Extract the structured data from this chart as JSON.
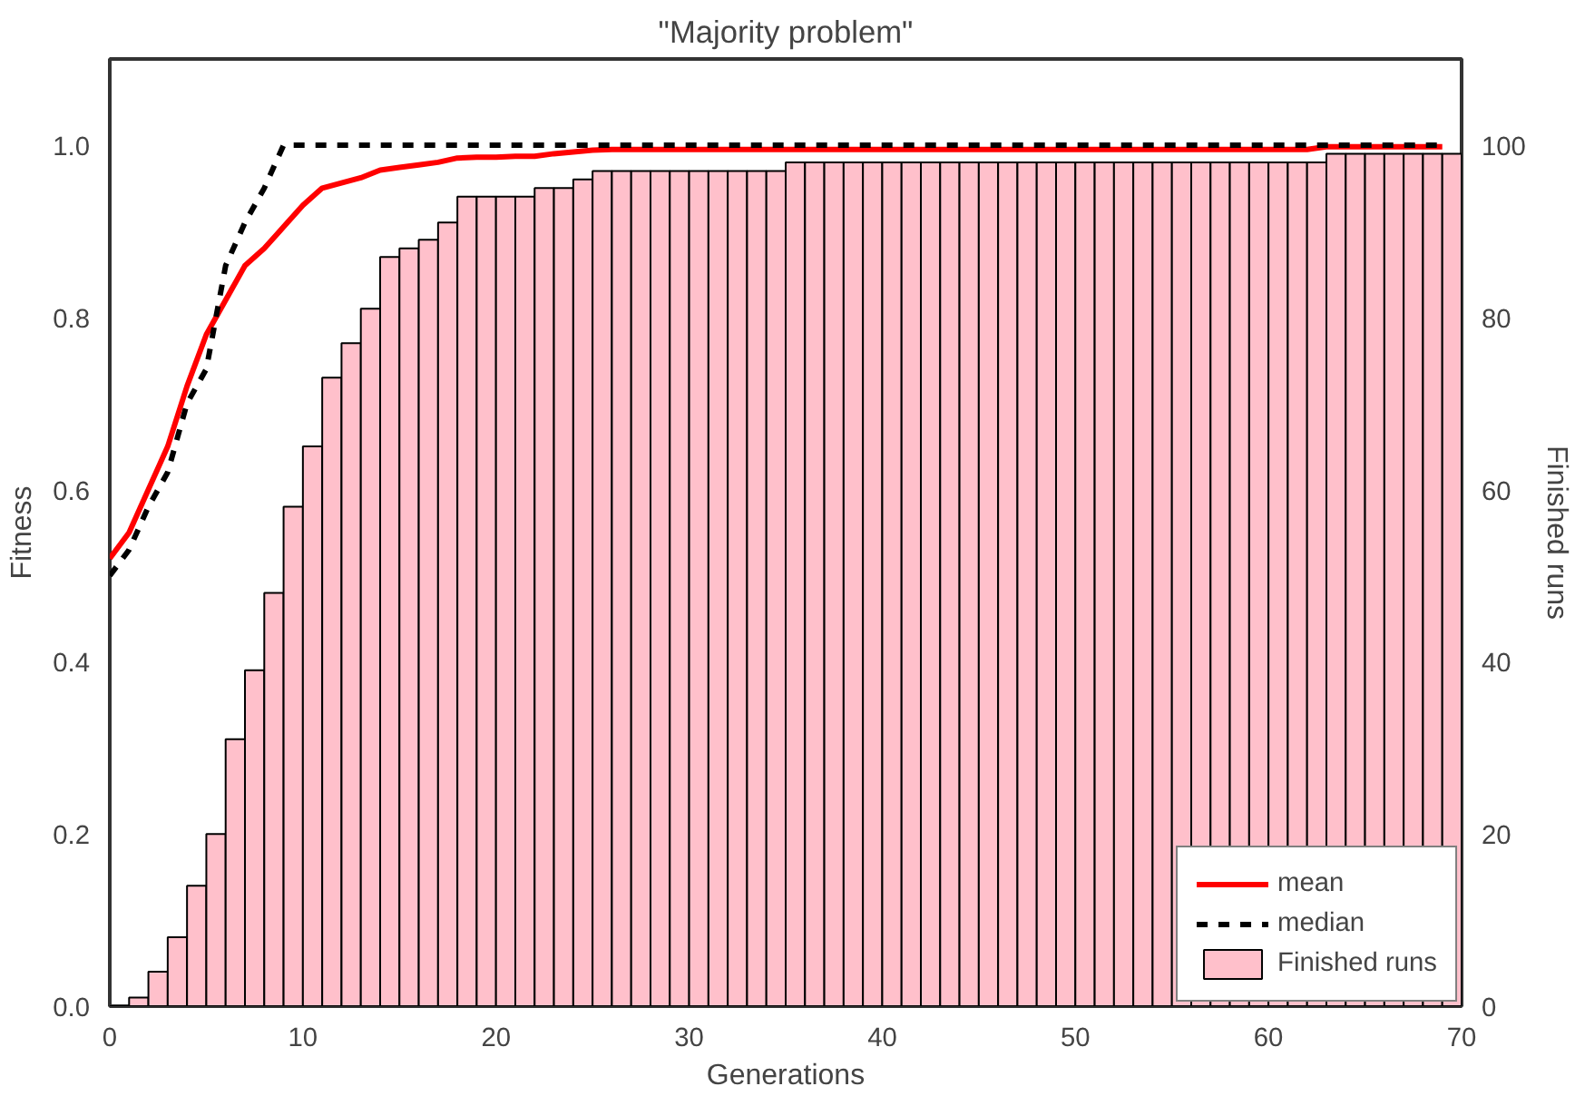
{
  "chart_data": {
    "type": "line",
    "title": "\"Majority problem\"",
    "xlabel": "Generations",
    "ylabel": "Fitness",
    "y2label": "Finished runs",
    "xlim": [
      0,
      70
    ],
    "xticks": [
      0,
      10,
      20,
      30,
      40,
      50,
      60,
      70
    ],
    "ylim": [
      0,
      1.1
    ],
    "yticks": [
      {
        "value": 0,
        "label": "0.0"
      },
      {
        "value": 0.2,
        "label": "0.2"
      },
      {
        "value": 0.4,
        "label": "0.4"
      },
      {
        "value": 0.6,
        "label": "0.6"
      },
      {
        "value": 0.8,
        "label": "0.8"
      },
      {
        "value": 1.0,
        "label": "1.0"
      }
    ],
    "y2lim": [
      0,
      110
    ],
    "y2ticks": [
      0,
      20,
      40,
      60,
      80,
      100
    ],
    "grid": false,
    "legend": "bottom right",
    "marker": "none",
    "series": [
      {
        "name": "mean",
        "color": "#ff0000",
        "line_style": "solid",
        "x": [
          0,
          1,
          2,
          3,
          4,
          5,
          6,
          7,
          8,
          9,
          10,
          11,
          12,
          13,
          14,
          15,
          16,
          17,
          18,
          19,
          20,
          21,
          22,
          23,
          24,
          25,
          26,
          27,
          28,
          29,
          30,
          31,
          32,
          33,
          34,
          35,
          36,
          37,
          38,
          39,
          40,
          41,
          42,
          43,
          44,
          45,
          46,
          47,
          48,
          49,
          50,
          51,
          52,
          53,
          54,
          55,
          56,
          57,
          58,
          59,
          60,
          61,
          62,
          63,
          64,
          65,
          66,
          67,
          68,
          69
        ],
        "values": [
          0.52,
          0.55,
          0.6,
          0.65,
          0.72,
          0.78,
          0.82,
          0.86,
          0.88,
          0.905,
          0.93,
          0.95,
          0.956,
          0.962,
          0.971,
          0.974,
          0.977,
          0.98,
          0.985,
          0.986,
          0.986,
          0.987,
          0.987,
          0.99,
          0.992,
          0.994,
          0.995,
          0.995,
          0.995,
          0.995,
          0.995,
          0.995,
          0.995,
          0.995,
          0.995,
          0.995,
          0.995,
          0.995,
          0.995,
          0.995,
          0.995,
          0.995,
          0.995,
          0.995,
          0.995,
          0.995,
          0.995,
          0.995,
          0.995,
          0.995,
          0.995,
          0.995,
          0.995,
          0.995,
          0.995,
          0.995,
          0.995,
          0.995,
          0.995,
          0.995,
          0.995,
          0.995,
          0.995,
          0.998,
          0.998,
          0.998,
          0.998,
          0.998,
          0.998,
          0.998
        ]
      },
      {
        "name": "median",
        "color": "#000000",
        "line_style": "dashed",
        "x": [
          0,
          1,
          2,
          3,
          4,
          5,
          6,
          7,
          8,
          9,
          10,
          11,
          12,
          13,
          14,
          15,
          16,
          17,
          18,
          19,
          20,
          21,
          22,
          23,
          24,
          25,
          26,
          27,
          28,
          29,
          30,
          31,
          32,
          33,
          34,
          35,
          36,
          37,
          38,
          39,
          40,
          41,
          42,
          43,
          44,
          45,
          46,
          47,
          48,
          49,
          50,
          51,
          52,
          53,
          54,
          55,
          56,
          57,
          58,
          59,
          60,
          61,
          62,
          63,
          64,
          65,
          66,
          67,
          68,
          69
        ],
        "values": [
          0.5,
          0.53,
          0.58,
          0.62,
          0.7,
          0.74,
          0.86,
          0.91,
          0.95,
          1,
          1,
          1,
          1,
          1,
          1,
          1,
          1,
          1,
          1,
          1,
          1,
          1,
          1,
          1,
          1,
          1,
          1,
          1,
          1,
          1,
          1,
          1,
          1,
          1,
          1,
          1,
          1,
          1,
          1,
          1,
          1,
          1,
          1,
          1,
          1,
          1,
          1,
          1,
          1,
          1,
          1,
          1,
          1,
          1,
          1,
          1,
          1,
          1,
          1,
          1,
          1,
          1,
          1,
          1,
          1,
          1,
          1,
          1,
          1,
          1
        ]
      },
      {
        "name": "Finished runs",
        "type": "histogram",
        "axis": "y2",
        "color": "#ffc0cb",
        "bins": [
          0,
          1,
          2,
          3,
          4,
          5,
          6,
          7,
          8,
          9,
          10,
          11,
          12,
          13,
          14,
          15,
          16,
          17,
          18,
          19,
          20,
          21,
          22,
          23,
          24,
          25,
          26,
          27,
          28,
          29,
          30,
          31,
          32,
          33,
          34,
          35,
          36,
          37,
          38,
          39,
          40,
          41,
          42,
          43,
          44,
          45,
          46,
          47,
          48,
          49,
          50,
          51,
          52,
          53,
          54,
          55,
          56,
          57,
          58,
          59,
          60,
          61,
          62,
          63,
          64,
          65,
          66,
          67,
          68,
          69,
          70
        ],
        "values": [
          0,
          1,
          4,
          8,
          14,
          20,
          31,
          39,
          48,
          58,
          65,
          73,
          77,
          81,
          87,
          88,
          89,
          91,
          94,
          94,
          94,
          94,
          95,
          95,
          96,
          97,
          97,
          97,
          97,
          97,
          97,
          97,
          97,
          97,
          97,
          98,
          98,
          98,
          98,
          98,
          98,
          98,
          98,
          98,
          98,
          98,
          98,
          98,
          98,
          98,
          98,
          98,
          98,
          98,
          98,
          98,
          98,
          98,
          98,
          98,
          98,
          98,
          98,
          99,
          99,
          99,
          99,
          99,
          99,
          99
        ]
      }
    ]
  }
}
